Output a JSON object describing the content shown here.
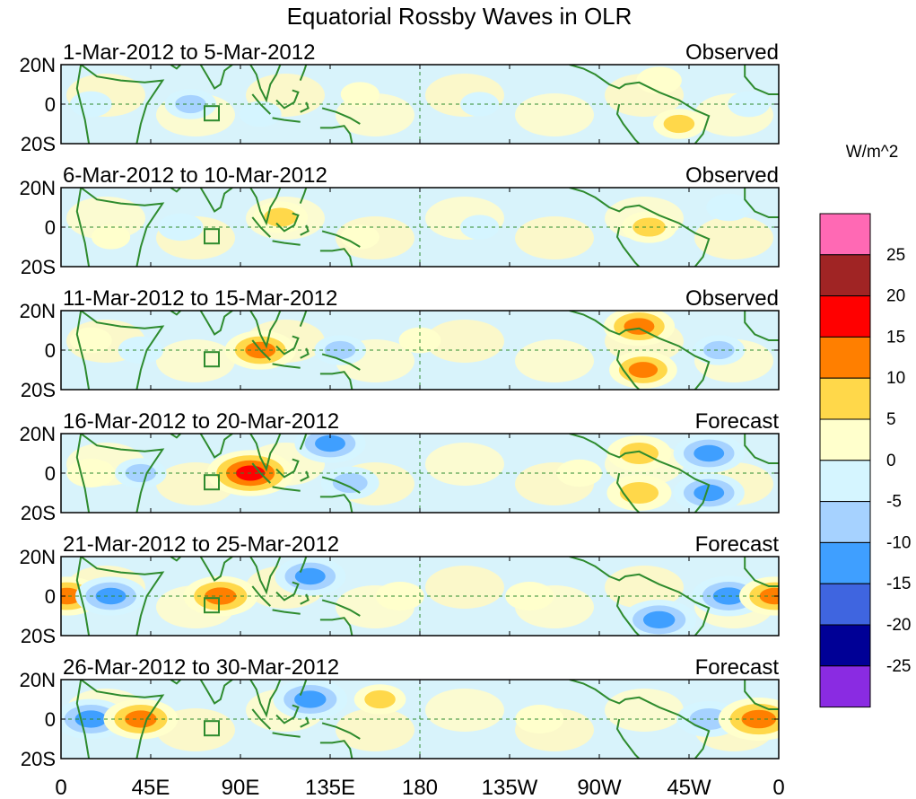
{
  "chart_data": {
    "type": "heatmap",
    "title": "Equatorial Rossby Waves in OLR",
    "colorbar": {
      "units": "W/m^2",
      "tick_labels": [
        "25",
        "20",
        "15",
        "10",
        "5",
        "0",
        "-5",
        "-10",
        "-15",
        "-20",
        "-25"
      ],
      "colors": [
        "#ff69b4",
        "#a02424",
        "#ff0000",
        "#ff7f00",
        "#ffd84a",
        "#ffffcc",
        "#d5f5ff",
        "#a6d2ff",
        "#3f9fff",
        "#3f65e0",
        "#000096",
        "#8a2be2"
      ]
    },
    "x_axis": {
      "tick_labels": [
        "0",
        "45E",
        "90E",
        "135E",
        "180",
        "135W",
        "90W",
        "45W",
        "0"
      ],
      "lon_range": [
        0,
        360
      ]
    },
    "y_axis": {
      "tick_labels": [
        "20N",
        "0",
        "20S"
      ],
      "lat_range": [
        -20,
        20
      ]
    },
    "panels": [
      {
        "period": "1-Mar-2012 to 5-Mar-2012",
        "status": "Observed",
        "anomalies": [
          {
            "lon": 15,
            "lat": 0,
            "value": -3
          },
          {
            "lon": 65,
            "lat": 0,
            "value": -6
          },
          {
            "lon": 100,
            "lat": -5,
            "value": -3
          },
          {
            "lon": 150,
            "lat": 5,
            "value": 2
          },
          {
            "lon": 210,
            "lat": 0,
            "value": -2
          },
          {
            "lon": 300,
            "lat": 12,
            "value": 4
          },
          {
            "lon": 310,
            "lat": -10,
            "value": 6
          },
          {
            "lon": 345,
            "lat": 0,
            "value": -3
          }
        ]
      },
      {
        "period": "6-Mar-2012 to 10-Mar-2012",
        "status": "Observed",
        "anomalies": [
          {
            "lon": 25,
            "lat": -5,
            "value": 2
          },
          {
            "lon": 60,
            "lat": 0,
            "value": -4
          },
          {
            "lon": 110,
            "lat": 5,
            "value": 7
          },
          {
            "lon": 150,
            "lat": -5,
            "value": 2
          },
          {
            "lon": 210,
            "lat": 0,
            "value": -2
          },
          {
            "lon": 295,
            "lat": 0,
            "value": 7
          },
          {
            "lon": 335,
            "lat": 10,
            "value": -4
          }
        ]
      },
      {
        "period": "11-Mar-2012 to 15-Mar-2012",
        "status": "Observed",
        "anomalies": [
          {
            "lon": 15,
            "lat": 5,
            "value": 3
          },
          {
            "lon": 40,
            "lat": 0,
            "value": -4
          },
          {
            "lon": 100,
            "lat": 0,
            "value": 12
          },
          {
            "lon": 140,
            "lat": 0,
            "value": -6
          },
          {
            "lon": 180,
            "lat": 5,
            "value": 3
          },
          {
            "lon": 290,
            "lat": 12,
            "value": 12
          },
          {
            "lon": 292,
            "lat": -10,
            "value": 11
          },
          {
            "lon": 330,
            "lat": 0,
            "value": -6
          }
        ]
      },
      {
        "period": "16-Mar-2012 to 20-Mar-2012",
        "status": "Forecast",
        "anomalies": [
          {
            "lon": 15,
            "lat": 0,
            "value": 5
          },
          {
            "lon": 40,
            "lat": 0,
            "value": -6
          },
          {
            "lon": 95,
            "lat": 0,
            "value": 17
          },
          {
            "lon": 135,
            "lat": 15,
            "value": -12
          },
          {
            "lon": 145,
            "lat": -5,
            "value": -8
          },
          {
            "lon": 260,
            "lat": 0,
            "value": 4
          },
          {
            "lon": 290,
            "lat": 10,
            "value": 10
          },
          {
            "lon": 290,
            "lat": -10,
            "value": 10
          },
          {
            "lon": 325,
            "lat": 10,
            "value": -12
          },
          {
            "lon": 325,
            "lat": -10,
            "value": -12
          }
        ]
      },
      {
        "period": "21-Mar-2012 to 25-Mar-2012",
        "status": "Forecast",
        "anomalies": [
          {
            "lon": 3,
            "lat": 0,
            "value": 12
          },
          {
            "lon": 25,
            "lat": 0,
            "value": -12
          },
          {
            "lon": 80,
            "lat": 0,
            "value": 13
          },
          {
            "lon": 125,
            "lat": 10,
            "value": -12
          },
          {
            "lon": 170,
            "lat": 0,
            "value": 5
          },
          {
            "lon": 235,
            "lat": 0,
            "value": 5
          },
          {
            "lon": 300,
            "lat": -12,
            "value": -13
          },
          {
            "lon": 335,
            "lat": 0,
            "value": -13
          },
          {
            "lon": 358,
            "lat": 0,
            "value": 12
          }
        ]
      },
      {
        "period": "26-Mar-2012 to 30-Mar-2012",
        "status": "Forecast",
        "anomalies": [
          {
            "lon": 15,
            "lat": 0,
            "value": -13
          },
          {
            "lon": 40,
            "lat": 0,
            "value": 13
          },
          {
            "lon": 125,
            "lat": 10,
            "value": -13
          },
          {
            "lon": 160,
            "lat": 10,
            "value": 6
          },
          {
            "lon": 240,
            "lat": 0,
            "value": 5
          },
          {
            "lon": 325,
            "lat": 0,
            "value": -10
          },
          {
            "lon": 350,
            "lat": 0,
            "value": 15
          }
        ]
      }
    ]
  }
}
